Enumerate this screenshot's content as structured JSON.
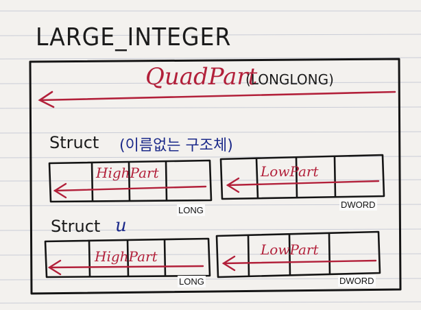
{
  "title": "LARGE_INTEGER",
  "quad_part": {
    "label": "QuadPart",
    "type": "(LONGLONG)"
  },
  "struct_anonymous": {
    "keyword": "Struct",
    "note": "(이름없는 구조체)",
    "high_label": "HighPart",
    "low_label": "LowPart",
    "high_type": "LONG",
    "low_type": "DWORD"
  },
  "struct_u": {
    "keyword": "Struct",
    "name": "u",
    "high_label": "HighPart",
    "low_label": "LowPart",
    "high_type": "LONG",
    "low_type": "DWORD"
  },
  "colors": {
    "ink": "#1b1b1b",
    "red_ink": "#b2203a",
    "blue_ink": "#1c2a8a",
    "paper": "#f3f1ee",
    "rule_line": "#c9ccd6"
  }
}
